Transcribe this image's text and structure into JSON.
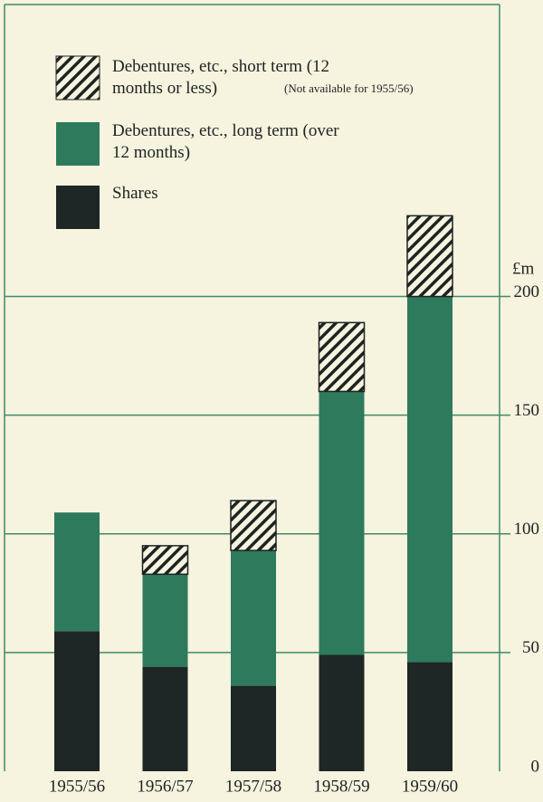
{
  "chart_data": {
    "type": "stacked_bar",
    "y_label": "£m",
    "annotation": "(Not available for 1955/56)",
    "categories": [
      "1955/56",
      "1956/57",
      "1957/58",
      "1958/59",
      "1959/60"
    ],
    "series": [
      {
        "name": "Shares",
        "color": "#1e2626",
        "values": [
          59,
          44,
          36,
          49,
          46
        ]
      },
      {
        "name": "Debentures, etc., long term (over 12 months)",
        "color": "#2e7a5c",
        "values": [
          50,
          39,
          57,
          111,
          154
        ]
      },
      {
        "name": "Debentures, etc., short term (12 months or less)",
        "color": "hatch",
        "values": [
          null,
          12,
          21,
          29,
          34
        ]
      }
    ],
    "ylim": [
      0,
      323
    ],
    "yticks": [
      0,
      50,
      100,
      150,
      200
    ],
    "grid": true
  }
}
